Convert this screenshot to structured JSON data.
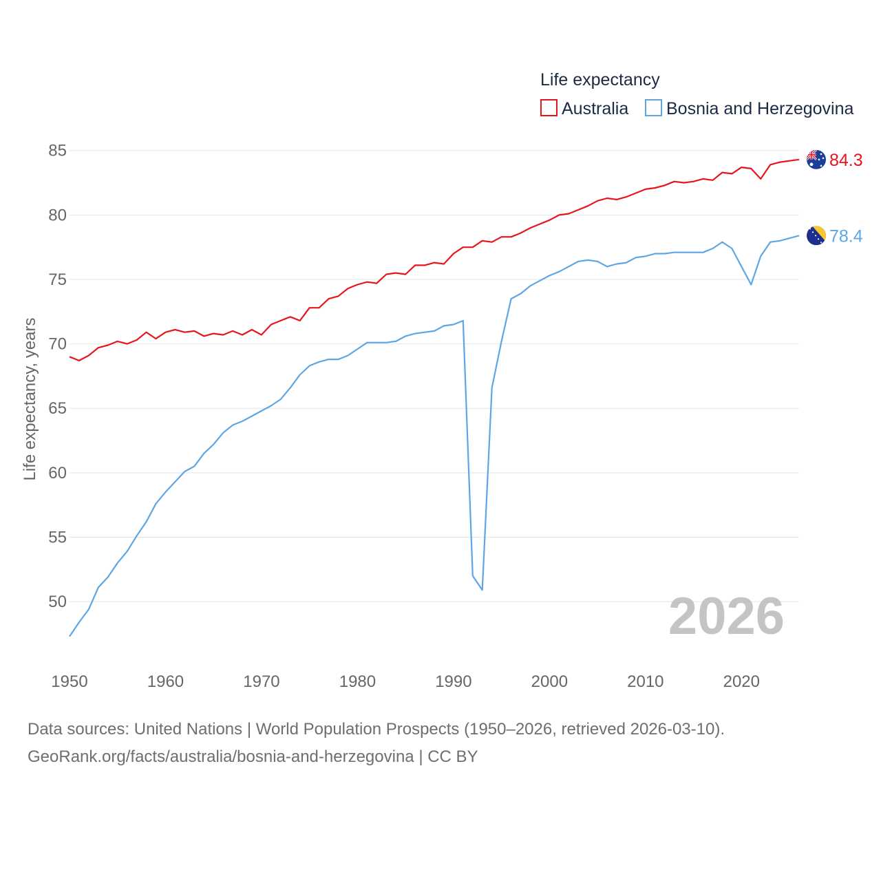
{
  "chart_data": {
    "type": "line",
    "legend_title": "Life expectancy",
    "legend_position": "top-right",
    "ylabel": "Life expectancy, years",
    "xlabel": "",
    "xlim": [
      1950,
      2026
    ],
    "ylim": [
      46,
      86
    ],
    "x_ticks": [
      1950,
      1960,
      1970,
      1980,
      1990,
      2000,
      2010,
      2020
    ],
    "y_ticks": [
      50,
      55,
      60,
      65,
      70,
      75,
      80,
      85
    ],
    "grid": true,
    "year_label": "2026",
    "x": [
      1950,
      1951,
      1952,
      1953,
      1954,
      1955,
      1956,
      1957,
      1958,
      1959,
      1960,
      1961,
      1962,
      1963,
      1964,
      1965,
      1966,
      1967,
      1968,
      1969,
      1970,
      1971,
      1972,
      1973,
      1974,
      1975,
      1976,
      1977,
      1978,
      1979,
      1980,
      1981,
      1982,
      1983,
      1984,
      1985,
      1986,
      1987,
      1988,
      1989,
      1990,
      1991,
      1992,
      1993,
      1994,
      1995,
      1996,
      1997,
      1998,
      1999,
      2000,
      2001,
      2002,
      2003,
      2004,
      2005,
      2006,
      2007,
      2008,
      2009,
      2010,
      2011,
      2012,
      2013,
      2014,
      2015,
      2016,
      2017,
      2018,
      2019,
      2020,
      2021,
      2022,
      2023,
      2024,
      2025,
      2026
    ],
    "series": [
      {
        "name": "Australia",
        "color": "#e8141b",
        "flag_icon": "australia-flag-icon",
        "end_label": "84.3",
        "values": [
          69.0,
          68.7,
          69.1,
          69.7,
          69.9,
          70.2,
          70.0,
          70.3,
          70.9,
          70.4,
          70.9,
          71.1,
          70.9,
          71.0,
          70.6,
          70.8,
          70.7,
          71.0,
          70.7,
          71.1,
          70.7,
          71.5,
          71.8,
          72.1,
          71.8,
          72.8,
          72.8,
          73.5,
          73.7,
          74.3,
          74.6,
          74.8,
          74.7,
          75.4,
          75.5,
          75.4,
          76.1,
          76.1,
          76.3,
          76.2,
          77.0,
          77.5,
          77.5,
          78.0,
          77.9,
          78.3,
          78.3,
          78.6,
          79.0,
          79.3,
          79.6,
          80.0,
          80.1,
          80.4,
          80.7,
          81.1,
          81.3,
          81.2,
          81.4,
          81.7,
          82.0,
          82.1,
          82.3,
          82.6,
          82.5,
          82.6,
          82.8,
          82.7,
          83.3,
          83.2,
          83.7,
          83.6,
          82.8,
          83.9,
          84.1,
          84.2,
          84.3
        ]
      },
      {
        "name": "Bosnia and Herzegovina",
        "color": "#5ca6e6",
        "flag_icon": "bosnia-flag-icon",
        "end_label": "78.4",
        "values": [
          47.3,
          48.4,
          49.4,
          51.1,
          51.9,
          53.0,
          53.9,
          55.1,
          56.2,
          57.6,
          58.5,
          59.3,
          60.1,
          60.5,
          61.5,
          62.2,
          63.1,
          63.7,
          64.0,
          64.4,
          64.8,
          65.2,
          65.7,
          66.6,
          67.6,
          68.3,
          68.6,
          68.8,
          68.8,
          69.1,
          69.6,
          70.1,
          70.1,
          70.1,
          70.2,
          70.6,
          70.8,
          70.9,
          71.0,
          71.4,
          71.5,
          71.8,
          52.0,
          50.9,
          66.6,
          70.2,
          73.5,
          73.9,
          74.5,
          74.9,
          75.3,
          75.6,
          76.0,
          76.4,
          76.5,
          76.4,
          76.0,
          76.2,
          76.3,
          76.7,
          76.8,
          77.0,
          77.0,
          77.1,
          77.1,
          77.1,
          77.1,
          77.4,
          77.9,
          77.4,
          76.0,
          74.6,
          76.8,
          77.9,
          78.0,
          78.2,
          78.4
        ]
      }
    ]
  },
  "footer": {
    "sources": "Data sources: United Nations | World Population Prospects (1950–2026, retrieved 2026-03-10).",
    "credit": "GeoRank.org/facts/australia/bosnia-and-herzegovina | CC BY"
  }
}
